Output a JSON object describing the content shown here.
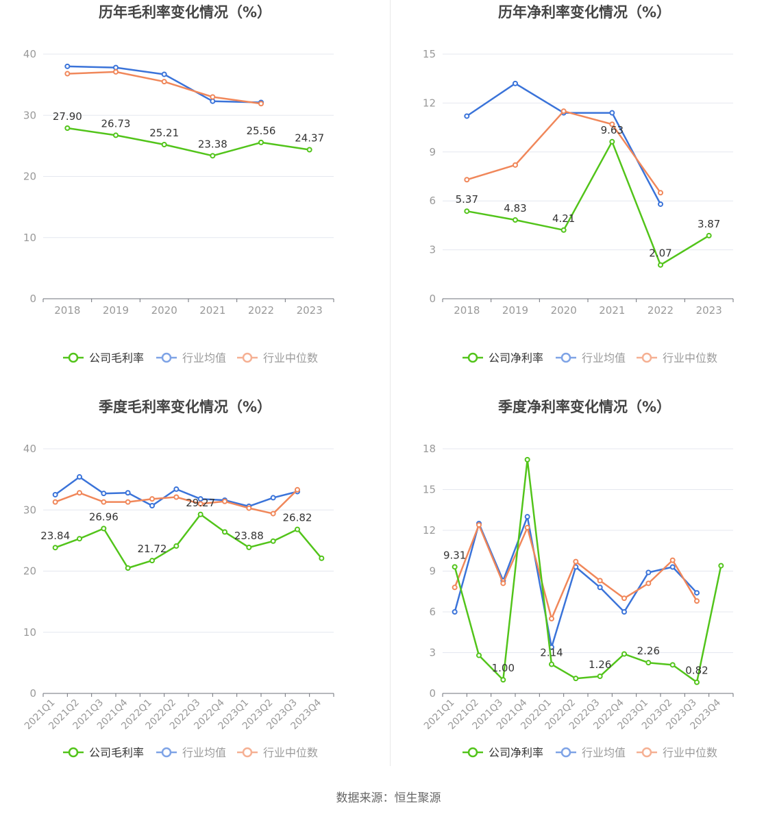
{
  "colors": {
    "company": "#52c41a",
    "avg": "#3a73d9",
    "median": "#f0875a",
    "grid": "#e4e7ef",
    "axis": "#6e7079",
    "tick": "#999999",
    "label": "#333333"
  },
  "source": "数据来源：恒生聚源",
  "chart_data": [
    {
      "type": "line",
      "title": "历年毛利率变化情况（%）",
      "categories": [
        "2018",
        "2019",
        "2020",
        "2021",
        "2022",
        "2023"
      ],
      "ylim": [
        0,
        40
      ],
      "yticks": [
        "0",
        "10",
        "20",
        "30",
        "40"
      ],
      "legend": [
        "公司毛利率",
        "行业均值",
        "行业中位数"
      ],
      "series": [
        {
          "name": "公司毛利率",
          "values": [
            27.9,
            26.73,
            25.21,
            23.38,
            25.56,
            24.37
          ],
          "labels": [
            "27.90",
            "26.73",
            "25.21",
            "23.38",
            "25.56",
            "24.37"
          ]
        },
        {
          "name": "行业均值",
          "values": [
            38.0,
            37.8,
            36.7,
            32.3,
            32.1,
            null
          ]
        },
        {
          "name": "行业中位数",
          "values": [
            36.8,
            37.1,
            35.5,
            33.0,
            31.9,
            null
          ]
        }
      ]
    },
    {
      "type": "line",
      "title": "历年净利率变化情况（%）",
      "categories": [
        "2018",
        "2019",
        "2020",
        "2021",
        "2022",
        "2023"
      ],
      "ylim": [
        0,
        15
      ],
      "yticks": [
        "0",
        "3",
        "6",
        "9",
        "12",
        "15"
      ],
      "legend": [
        "公司净利率",
        "行业均值",
        "行业中位数"
      ],
      "series": [
        {
          "name": "公司净利率",
          "values": [
            5.37,
            4.83,
            4.21,
            9.63,
            2.07,
            3.87
          ],
          "labels": [
            "5.37",
            "4.83",
            "4.21",
            "9.63",
            "2.07",
            "3.87"
          ]
        },
        {
          "name": "行业均值",
          "values": [
            11.2,
            13.2,
            11.4,
            11.4,
            5.8,
            null
          ]
        },
        {
          "name": "行业中位数",
          "values": [
            7.3,
            8.2,
            11.5,
            10.7,
            6.5,
            null
          ]
        }
      ]
    },
    {
      "type": "line",
      "title": "季度毛利率变化情况（%）",
      "categories": [
        "2021Q1",
        "2021Q2",
        "2021Q3",
        "2021Q4",
        "2022Q1",
        "2022Q2",
        "2022Q3",
        "2022Q4",
        "2023Q1",
        "2023Q2",
        "2023Q3",
        "2023Q4"
      ],
      "ylim": [
        0,
        40
      ],
      "yticks": [
        "0",
        "10",
        "20",
        "30",
        "40"
      ],
      "legend": [
        "公司毛利率",
        "行业均值",
        "行业中位数"
      ],
      "series": [
        {
          "name": "公司毛利率",
          "values": [
            23.84,
            25.3,
            26.96,
            20.5,
            21.72,
            24.1,
            29.27,
            26.4,
            23.88,
            24.9,
            26.82,
            22.1
          ],
          "labels": [
            "23.84",
            "",
            "26.96",
            "",
            "21.72",
            "",
            "29.27",
            "",
            "23.88",
            "",
            "26.82",
            ""
          ]
        },
        {
          "name": "行业均值",
          "values": [
            32.5,
            35.4,
            32.7,
            32.8,
            30.7,
            33.4,
            31.8,
            31.6,
            30.6,
            32.0,
            33.0,
            null
          ]
        },
        {
          "name": "行业中位数",
          "values": [
            31.3,
            32.8,
            31.3,
            31.3,
            31.8,
            32.1,
            31.0,
            31.4,
            30.3,
            29.4,
            33.3,
            null
          ]
        }
      ]
    },
    {
      "type": "line",
      "title": "季度净利率变化情况（%）",
      "categories": [
        "2021Q1",
        "2021Q2",
        "2021Q3",
        "2021Q4",
        "2022Q1",
        "2022Q2",
        "2022Q3",
        "2022Q4",
        "2023Q1",
        "2023Q2",
        "2023Q3",
        "2023Q4"
      ],
      "ylim": [
        0,
        18
      ],
      "yticks": [
        "0",
        "3",
        "6",
        "9",
        "12",
        "15",
        "18"
      ],
      "legend": [
        "公司净利率",
        "行业均值",
        "行业中位数"
      ],
      "series": [
        {
          "name": "公司净利率",
          "values": [
            9.31,
            2.8,
            1.0,
            17.2,
            2.14,
            1.1,
            1.26,
            2.9,
            2.26,
            2.1,
            0.82,
            9.4
          ],
          "labels": [
            "9.31",
            "",
            "1.00",
            "",
            "2.14",
            "",
            "1.26",
            "",
            "2.26",
            "",
            "0.82",
            ""
          ]
        },
        {
          "name": "行业均值",
          "values": [
            6.0,
            12.5,
            8.3,
            13.0,
            3.4,
            9.3,
            7.8,
            6.0,
            8.9,
            9.3,
            7.4,
            null
          ]
        },
        {
          "name": "行业中位数",
          "values": [
            7.8,
            12.4,
            8.1,
            12.2,
            5.5,
            9.7,
            8.3,
            7.0,
            8.1,
            9.8,
            6.8,
            null
          ]
        }
      ]
    }
  ]
}
